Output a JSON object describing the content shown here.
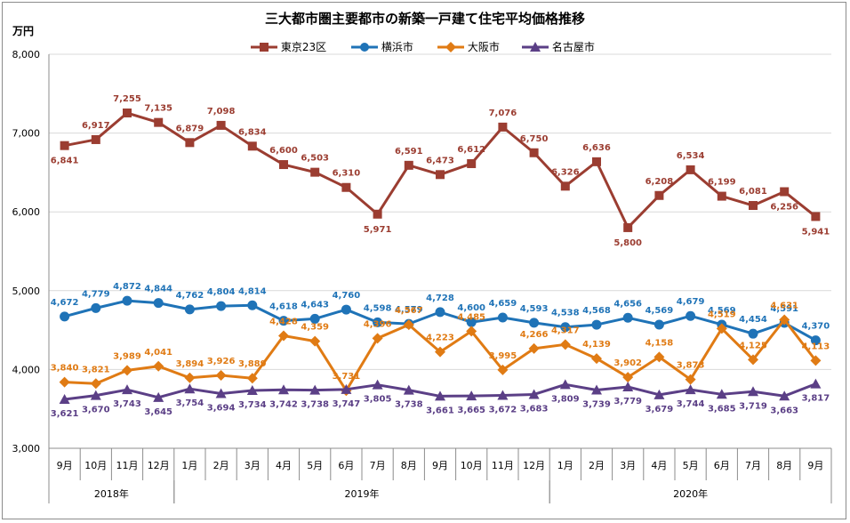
{
  "chart_data": {
    "type": "line",
    "title": "三大都市圏主要都市の新築一戸建て住宅平均価格推移",
    "ylabel": "万円",
    "ylim": [
      3000,
      8000
    ],
    "yticks": [
      "3,000",
      "4,000",
      "5,000",
      "6,000",
      "7,000",
      "8,000"
    ],
    "grid": true,
    "legend_position": "top",
    "months": [
      "9月",
      "10月",
      "11月",
      "12月",
      "1月",
      "2月",
      "3月",
      "4月",
      "5月",
      "6月",
      "7月",
      "8月",
      "9月",
      "10月",
      "11月",
      "12月",
      "1月",
      "2月",
      "3月",
      "4月",
      "5月",
      "6月",
      "7月",
      "8月",
      "9月"
    ],
    "years": [
      {
        "label": "2018年",
        "from": 0,
        "to": 3
      },
      {
        "label": "2019年",
        "from": 4,
        "to": 15
      },
      {
        "label": "2020年",
        "from": 16,
        "to": 24
      }
    ],
    "series": [
      {
        "name": "東京23区",
        "color": "#9b3d31",
        "marker": "square",
        "values": [
          6841,
          6917,
          7255,
          7135,
          6879,
          7098,
          6834,
          6600,
          6503,
          6310,
          5971,
          6591,
          6473,
          6612,
          7076,
          6750,
          6326,
          6636,
          5800,
          6208,
          6534,
          6199,
          6081,
          6256,
          5941
        ],
        "labels": [
          "6,841",
          "6,917",
          "7,255",
          "7,135",
          "6,879",
          "7,098",
          "6,834",
          "6,600",
          "6,503",
          "6,310",
          "5,971",
          "6,591",
          "6,473",
          "6,612",
          "7,076",
          "6,750",
          "6,326",
          "6,636",
          "5,800",
          "6,208",
          "6,534",
          "6,199",
          "6,081",
          "6,256",
          "5,941"
        ]
      },
      {
        "name": "横浜市",
        "color": "#1f73b7",
        "marker": "circle",
        "values": [
          4672,
          4779,
          4872,
          4844,
          4762,
          4804,
          4814,
          4618,
          4643,
          4760,
          4598,
          4579,
          4728,
          4600,
          4659,
          4593,
          4538,
          4568,
          4656,
          4569,
          4679,
          4569,
          4454,
          4591,
          4370
        ],
        "labels": [
          "4,672",
          "4,779",
          "4,872",
          "4,844",
          "4,762",
          "4,804",
          "4,814",
          "4,618",
          "4,643",
          "4,760",
          "4,598",
          "4,579",
          "4,728",
          "4,600",
          "4,659",
          "4,593",
          "4,538",
          "4,568",
          "4,656",
          "4,569",
          "4,679",
          "4,569",
          "4,454",
          "4,591",
          "4,370"
        ]
      },
      {
        "name": "大阪市",
        "color": "#e07b14",
        "marker": "diamond",
        "values": [
          3840,
          3821,
          3989,
          4041,
          3894,
          3926,
          3889,
          4428,
          4359,
          3731,
          4396,
          4567,
          4223,
          4485,
          3995,
          4266,
          4317,
          4139,
          3902,
          4158,
          3873,
          4519,
          4125,
          4631,
          4113
        ],
        "labels": [
          "3,840",
          "3,821",
          "3,989",
          "4,041",
          "3,894",
          "3,926",
          "3,889",
          "4,428",
          "4,359",
          "3,731",
          "4,396",
          "4,567",
          "4,223",
          "4,485",
          "3,995",
          "4,266",
          "4,317",
          "4,139",
          "3,902",
          "4,158",
          "3,873",
          "4,519",
          "4,125",
          "4,631",
          "4,113"
        ]
      },
      {
        "name": "名古屋市",
        "color": "#5b3f86",
        "marker": "triangle",
        "values": [
          3621,
          3670,
          3743,
          3645,
          3754,
          3694,
          3734,
          3742,
          3738,
          3747,
          3805,
          3738,
          3661,
          3665,
          3672,
          3683,
          3809,
          3739,
          3779,
          3679,
          3744,
          3685,
          3719,
          3663,
          3817
        ],
        "labels": [
          "3,621",
          "3,670",
          "3,743",
          "3,645",
          "3,754",
          "3,694",
          "3,734",
          "3,742",
          "3,738",
          "3,747",
          "3,805",
          "3,738",
          "3,661",
          "3,665",
          "3,672",
          "3,683",
          "3,809",
          "3,739",
          "3,779",
          "3,679",
          "3,744",
          "3,685",
          "3,719",
          "3,663",
          "3,817"
        ]
      }
    ]
  }
}
